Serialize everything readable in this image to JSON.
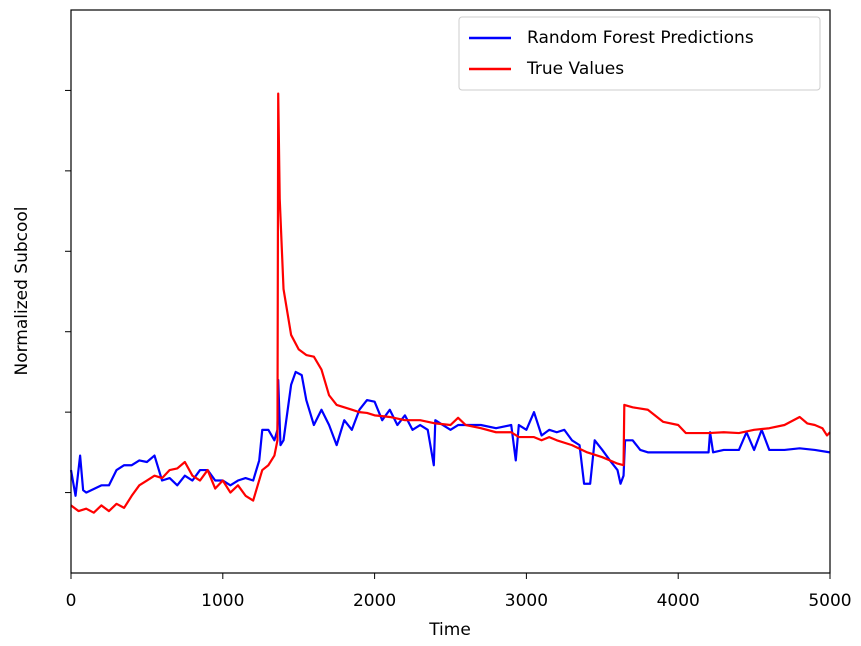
{
  "chart_data": {
    "type": "line",
    "x_label": "Time",
    "y_label": "Normalized Subcool",
    "xlim": [
      0,
      5000
    ],
    "xticks": [
      0,
      1000,
      2000,
      3000,
      4000,
      5000
    ],
    "ylim": [
      -1,
      6
    ],
    "yticks": [
      0,
      1,
      2,
      3,
      4,
      5
    ],
    "legend": "upper right",
    "series": [
      {
        "name": "Random Forest Predictions",
        "color": "#0000ff",
        "x": [
          0,
          30,
          60,
          80,
          100,
          200,
          250,
          300,
          350,
          400,
          450,
          500,
          550,
          600,
          650,
          700,
          750,
          800,
          850,
          900,
          950,
          1000,
          1050,
          1100,
          1150,
          1200,
          1240,
          1260,
          1300,
          1340,
          1360,
          1365,
          1380,
          1400,
          1450,
          1480,
          1520,
          1550,
          1600,
          1650,
          1700,
          1750,
          1800,
          1850,
          1900,
          1950,
          2000,
          2050,
          2100,
          2150,
          2200,
          2250,
          2300,
          2350,
          2390,
          2400,
          2450,
          2500,
          2550,
          2600,
          2700,
          2800,
          2900,
          2930,
          2950,
          3000,
          3050,
          3100,
          3150,
          3200,
          3250,
          3300,
          3350,
          3380,
          3420,
          3450,
          3500,
          3550,
          3600,
          3620,
          3640,
          3650,
          3700,
          3750,
          3800,
          3900,
          4000,
          4100,
          4200,
          4210,
          4230,
          4300,
          4400,
          4450,
          4500,
          4550,
          4600,
          4700,
          4800,
          4900,
          5000
        ],
        "values": [
          0.28,
          -0.04,
          0.46,
          0.03,
          0,
          0.09,
          0.09,
          0.28,
          0.34,
          0.34,
          0.4,
          0.38,
          0.46,
          0.15,
          0.18,
          0.09,
          0.21,
          0.15,
          0.28,
          0.28,
          0.15,
          0.15,
          0.09,
          0.15,
          0.18,
          0.15,
          0.4,
          0.78,
          0.78,
          0.65,
          0.78,
          1.4,
          0.59,
          0.65,
          1.34,
          1.5,
          1.46,
          1.15,
          0.84,
          1.03,
          0.84,
          0.59,
          0.9,
          0.78,
          1.03,
          1.15,
          1.13,
          0.9,
          1.03,
          0.84,
          0.96,
          0.78,
          0.84,
          0.78,
          0.34,
          0.9,
          0.84,
          0.78,
          0.84,
          0.84,
          0.84,
          0.8,
          0.84,
          0.4,
          0.84,
          0.78,
          1,
          0.71,
          0.78,
          0.75,
          0.78,
          0.65,
          0.59,
          0.11,
          0.11,
          0.65,
          0.53,
          0.4,
          0.28,
          0.11,
          0.21,
          0.65,
          0.65,
          0.53,
          0.5,
          0.5,
          0.5,
          0.5,
          0.5,
          0.75,
          0.5,
          0.53,
          0.53,
          0.75,
          0.53,
          0.78,
          0.53,
          0.53,
          0.55,
          0.53,
          0.5
        ]
      },
      {
        "name": "True Values",
        "color": "#ff0000",
        "x": [
          0,
          50,
          100,
          150,
          200,
          250,
          300,
          350,
          400,
          450,
          500,
          550,
          600,
          650,
          700,
          750,
          800,
          850,
          900,
          950,
          1000,
          1050,
          1100,
          1150,
          1200,
          1230,
          1260,
          1300,
          1340,
          1360,
          1365,
          1375,
          1400,
          1450,
          1500,
          1550,
          1600,
          1650,
          1700,
          1750,
          1800,
          1850,
          1900,
          1950,
          2000,
          2100,
          2200,
          2300,
          2400,
          2500,
          2550,
          2600,
          2700,
          2800,
          2900,
          2950,
          3000,
          3050,
          3100,
          3150,
          3200,
          3300,
          3400,
          3500,
          3600,
          3640,
          3645,
          3700,
          3800,
          3900,
          4000,
          4050,
          4100,
          4200,
          4300,
          4400,
          4500,
          4600,
          4700,
          4800,
          4850,
          4900,
          4950,
          4980,
          5000
        ],
        "values": [
          -0.16,
          -0.23,
          -0.2,
          -0.25,
          -0.16,
          -0.23,
          -0.14,
          -0.19,
          -0.04,
          0.09,
          0.15,
          0.21,
          0.18,
          0.28,
          0.3,
          0.38,
          0.21,
          0.15,
          0.28,
          0.05,
          0.15,
          0,
          0.09,
          -0.04,
          -0.1,
          0.09,
          0.28,
          0.34,
          0.46,
          0.65,
          4.96,
          3.65,
          2.53,
          1.96,
          1.78,
          1.71,
          1.69,
          1.53,
          1.21,
          1.09,
          1.06,
          1.03,
          1,
          0.99,
          0.96,
          0.94,
          0.9,
          0.9,
          0.86,
          0.84,
          0.93,
          0.84,
          0.8,
          0.75,
          0.75,
          0.69,
          0.69,
          0.69,
          0.65,
          0.69,
          0.65,
          0.59,
          0.5,
          0.44,
          0.36,
          0.34,
          1.09,
          1.06,
          1.03,
          0.88,
          0.84,
          0.74,
          0.74,
          0.74,
          0.75,
          0.74,
          0.78,
          0.8,
          0.84,
          0.94,
          0.86,
          0.84,
          0.8,
          0.71,
          0.75
        ]
      }
    ]
  }
}
